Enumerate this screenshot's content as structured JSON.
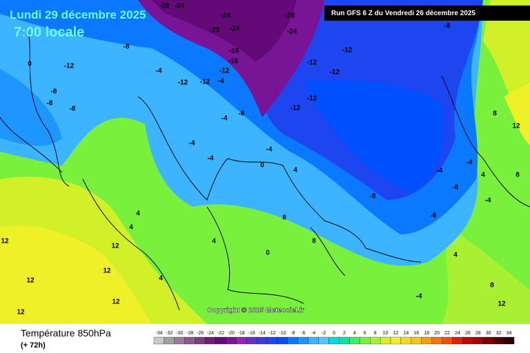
{
  "header": {
    "date": "Lundi 29 décembre 2025",
    "time": "7:00 locale",
    "run": "Run GFS 6 Z du Vendredi 26 décembre 2025"
  },
  "copyright": "Copyright © 2025 Meteociel.fr",
  "footer": {
    "title": "Température 850hPa",
    "lead": "(+ 72h)"
  },
  "scale": {
    "ticks": [
      -34,
      -32,
      -30,
      -28,
      -26,
      -24,
      -22,
      -20,
      -18,
      -16,
      -14,
      -12,
      -10,
      -8,
      -6,
      -4,
      -2,
      0,
      2,
      4,
      6,
      8,
      10,
      12,
      14,
      16,
      18,
      20,
      22,
      24,
      26,
      28,
      30,
      32,
      34
    ],
    "colors": [
      "#c8c8c8",
      "#a0a0a0",
      "#9b7b9b",
      "#8c5a8c",
      "#7d3c7d",
      "#6e1e6e",
      "#640a78",
      "#781496",
      "#8c28b4",
      "#6432c8",
      "#3c3cdc",
      "#1e46f0",
      "#0050ff",
      "#0a78ff",
      "#1e96ff",
      "#3cb4ff",
      "#50c8ff",
      "#00dcdc",
      "#00e6a0",
      "#3cf064",
      "#78f03c",
      "#aaf032",
      "#d2f028",
      "#f0f028",
      "#f0dc1e",
      "#f0c814",
      "#f0a00a",
      "#f07800",
      "#f05000",
      "#e61e00",
      "#c80000",
      "#a00000",
      "#780000",
      "#500000",
      "#280000"
    ]
  },
  "contour_labels": [
    -28,
    -24,
    -24,
    -20,
    -24,
    -28,
    -24,
    -16,
    -16,
    -8,
    -12,
    0,
    -8,
    -8,
    -8,
    -4,
    -12,
    -12,
    -12,
    -4,
    -8,
    -4,
    -4,
    -4,
    -4,
    0,
    -12,
    -12,
    -12,
    -12,
    -12,
    -8,
    8,
    12,
    -4,
    -4,
    -8,
    -8,
    -8,
    -4,
    4,
    8,
    4,
    4,
    12,
    12,
    12,
    12,
    12,
    12,
    4,
    0,
    8,
    8,
    4,
    -4,
    8,
    12,
    4,
    4
  ]
}
